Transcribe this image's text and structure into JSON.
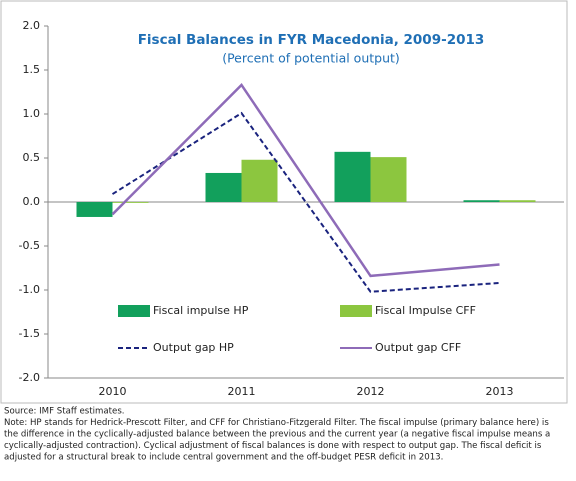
{
  "chart_data": {
    "type": "bar",
    "title": "Fiscal Balances in FYR Macedonia, 2009-2013",
    "subtitle": "(Percent of potential output)",
    "categories": [
      "2010",
      "2011",
      "2012",
      "2013"
    ],
    "series": [
      {
        "name": "Fiscal impulse HP",
        "kind": "bar",
        "color": "#12a05c",
        "values": [
          -0.17,
          0.33,
          0.57,
          0.02
        ]
      },
      {
        "name": "Fiscal Impulse CFF",
        "kind": "bar",
        "color": "#8cc63f",
        "values": [
          -0.01,
          0.48,
          0.51,
          0.02
        ]
      },
      {
        "name": "Output gap HP",
        "kind": "line",
        "dashed": true,
        "color": "#1a237e",
        "values": [
          0.09,
          1.01,
          -1.02,
          -0.92
        ]
      },
      {
        "name": "Output gap CFF",
        "kind": "line",
        "dashed": false,
        "color": "#8e6bb8",
        "values": [
          -0.14,
          1.33,
          -0.84,
          -0.71
        ]
      }
    ],
    "ylim": [
      -2.0,
      2.0
    ],
    "yticks": [
      {
        "value": -2,
        "label": "-2.0"
      },
      {
        "value": -1.5,
        "label": "-1.5"
      },
      {
        "value": -1,
        "label": "-1.0"
      },
      {
        "value": -0.5,
        "label": "-0.5"
      },
      {
        "value": 0,
        "label": "0.0"
      },
      {
        "value": 0.5,
        "label": "0.5"
      },
      {
        "value": 1,
        "label": "1.0"
      },
      {
        "value": 1.5,
        "label": "1.5"
      },
      {
        "value": 2,
        "label": "2.0"
      }
    ],
    "grid": false,
    "notes": [
      "Source: IMF Staff estimates.",
      "Note: HP stands for Hedrick-Prescott Filter, and CFF for Christiano-Fitzgerald Filter. The fiscal impulse  (primary balance here) is",
      "the difference in the cyclically-adjusted balance between the previous and the current year (a negative fiscal impulse means a",
      "cyclically-adjusted contraction). Cyclical adjustment of fiscal balances is done with respect to output gap. The fiscal deficit is",
      "adjusted for a structural break to include central government and the off-budget PESR deficit in 2013."
    ]
  }
}
